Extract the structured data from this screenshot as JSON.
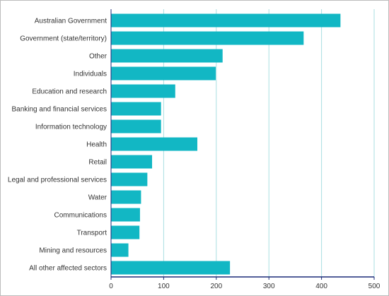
{
  "chart_data": {
    "type": "bar",
    "orientation": "horizontal",
    "categories": [
      "Australian Government",
      "Government (state/territory)",
      "Other",
      "Individuals",
      "Education and research",
      "Banking and financial services",
      "Information technology",
      "Health",
      "Retail",
      "Legal and professional services",
      "Water",
      "Communications",
      "Transport",
      "Mining and resources",
      "All other affected sectors"
    ],
    "values": [
      436,
      366,
      212,
      199,
      122,
      95,
      95,
      164,
      78,
      69,
      57,
      55,
      54,
      33,
      226
    ],
    "title": "",
    "xlabel": "",
    "ylabel": "",
    "xlim": [
      0,
      500
    ],
    "x_ticks": [
      "0",
      "100",
      "200",
      "300",
      "400",
      "500"
    ],
    "grid": "vertical",
    "legend": "none",
    "colors": {
      "bar": "#12b7c4",
      "grid": "#a9dfe2",
      "axis": "#1a2a78",
      "text": "#333333"
    }
  }
}
